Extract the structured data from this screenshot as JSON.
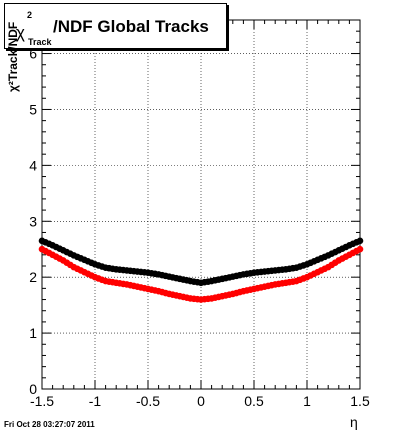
{
  "title": {
    "chi": "χ",
    "sup": "2",
    "sub": "Track",
    "main": "/NDF  Global Tracks"
  },
  "footer": "Fri Oct 28 03:27:07 2011",
  "chart_data": {
    "type": "scatter",
    "xlabel": "η",
    "ylabel": "χ²Track/NDF",
    "xlim": [
      -1.5,
      1.5
    ],
    "ylim": [
      0,
      6.6
    ],
    "xticks": [
      -1.5,
      -1,
      -0.5,
      0,
      0.5,
      1,
      1.5
    ],
    "xtick_labels": [
      "-1.5",
      "-1",
      "-0.5",
      "0",
      "0.5",
      "1",
      "1.5"
    ],
    "yticks": [
      0,
      1,
      2,
      3,
      4,
      5,
      6
    ],
    "ytick_labels": [
      "0",
      "1",
      "2",
      "3",
      "4",
      "5",
      "6"
    ],
    "grid": true,
    "series": [
      {
        "color": "#000000",
        "x": [
          -1.5,
          -1.4,
          -1.3,
          -1.2,
          -1.1,
          -1.0,
          -0.9,
          -0.8,
          -0.7,
          -0.6,
          -0.5,
          -0.4,
          -0.3,
          -0.2,
          -0.1,
          0.0,
          0.1,
          0.2,
          0.3,
          0.4,
          0.5,
          0.6,
          0.7,
          0.8,
          0.9,
          1.0,
          1.1,
          1.2,
          1.3,
          1.4,
          1.5
        ],
        "y": [
          2.65,
          2.57,
          2.48,
          2.39,
          2.31,
          2.23,
          2.17,
          2.14,
          2.12,
          2.1,
          2.08,
          2.05,
          2.01,
          1.97,
          1.93,
          1.9,
          1.93,
          1.97,
          2.01,
          2.05,
          2.08,
          2.1,
          2.12,
          2.14,
          2.17,
          2.23,
          2.31,
          2.39,
          2.48,
          2.57,
          2.65
        ]
      },
      {
        "color": "#ff0000",
        "x": [
          -1.5,
          -1.4,
          -1.3,
          -1.2,
          -1.1,
          -1.0,
          -0.9,
          -0.8,
          -0.7,
          -0.6,
          -0.5,
          -0.4,
          -0.3,
          -0.2,
          -0.1,
          0.0,
          0.1,
          0.2,
          0.3,
          0.4,
          0.5,
          0.6,
          0.7,
          0.8,
          0.9,
          1.0,
          1.1,
          1.2,
          1.3,
          1.4,
          1.5
        ],
        "y": [
          2.5,
          2.4,
          2.3,
          2.18,
          2.09,
          2.0,
          1.93,
          1.9,
          1.87,
          1.83,
          1.79,
          1.75,
          1.7,
          1.66,
          1.62,
          1.6,
          1.62,
          1.66,
          1.7,
          1.75,
          1.79,
          1.83,
          1.87,
          1.9,
          1.93,
          2.0,
          2.09,
          2.18,
          2.3,
          2.4,
          2.5
        ]
      }
    ]
  }
}
